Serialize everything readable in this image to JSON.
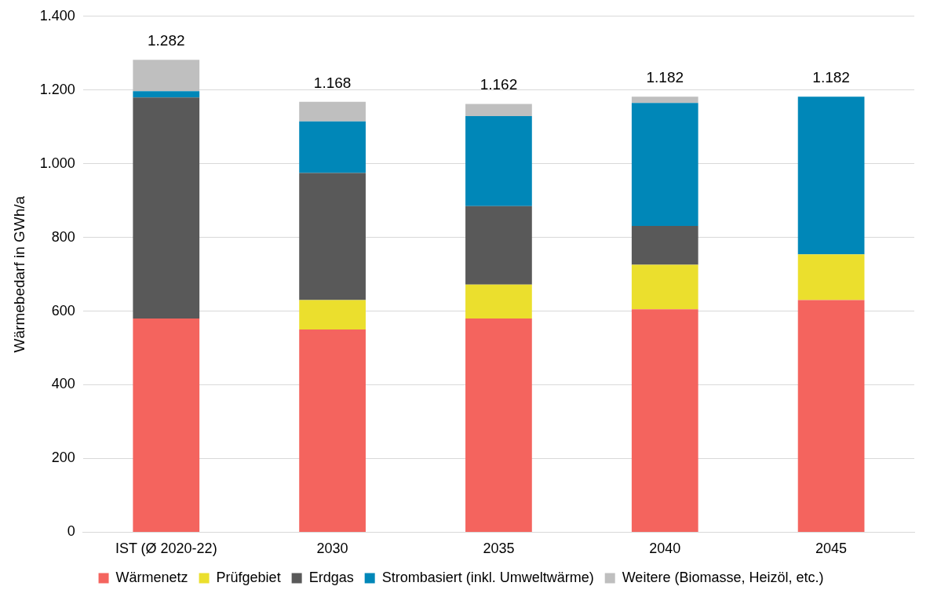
{
  "chart_data": {
    "type": "bar",
    "stacked": true,
    "ylabel": "Wärmebedarf in GWh/a",
    "categories": [
      "IST (Ø 2020-22)",
      "2030",
      "2035",
      "2040",
      "2045"
    ],
    "series": [
      {
        "name": "Wärmenetz",
        "color": "#f4645e",
        "values": [
          580,
          550,
          580,
          605,
          630
        ]
      },
      {
        "name": "Prüfgebiet",
        "color": "#ebdf2d",
        "values": [
          0,
          80,
          92,
          121,
          124
        ]
      },
      {
        "name": "Erdgas",
        "color": "#595959",
        "values": [
          600,
          345,
          213,
          105,
          0
        ]
      },
      {
        "name": "Strombasiert (inkl. Umweltwärme)",
        "color": "#0087b8",
        "values": [
          17,
          140,
          244,
          334,
          428
        ]
      },
      {
        "name": "Weitere (Biomasse, Heizöl, etc.)",
        "color": "#bfbfbf",
        "values": [
          85,
          53,
          33,
          17,
          0
        ]
      }
    ],
    "totals": [
      "1.282",
      "1.168",
      "1.162",
      "1.182",
      "1.182"
    ],
    "ylim": [
      0,
      1400
    ],
    "yticks": [
      0,
      200,
      400,
      600,
      800,
      {
        "value": 1000,
        "label": "1.000"
      },
      {
        "value": 1200,
        "label": "1.200"
      },
      {
        "value": 1400,
        "label": "1.400"
      }
    ],
    "grid": "y",
    "legend": "bottom"
  }
}
